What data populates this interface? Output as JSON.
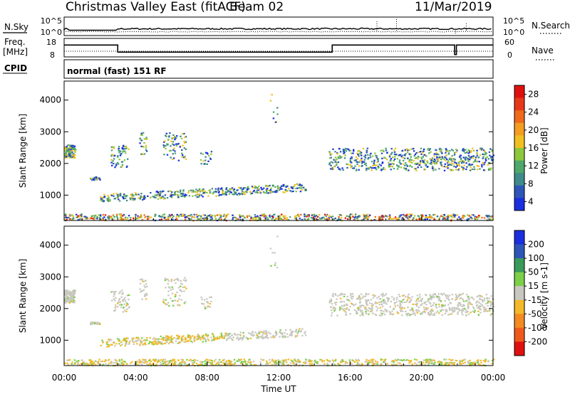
{
  "header": {
    "station": "Christmas Valley East (fitACF)",
    "beam": "Beam 02",
    "date": "11/Mar/2019"
  },
  "panels": {
    "nsky_label": "N.Sky",
    "nsearch_label": "N.Search",
    "freq_label_1": "Freq.",
    "freq_label_2": "[MHz]",
    "nave_label": "Nave",
    "cpid_label": "CPID",
    "cpid_text": "normal (fast) 151 RF"
  },
  "chart_data": [
    {
      "type": "line",
      "name": "noise",
      "left_ticks": [
        "10^5",
        "10^0"
      ],
      "right_ticks": [
        "10^5",
        "10^0"
      ]
    },
    {
      "type": "line",
      "name": "frequency-nave",
      "left_ticks": [
        "18",
        "8"
      ],
      "right_ticks": [
        "60",
        "0"
      ],
      "freq_steps": [
        [
          0,
          16
        ],
        [
          3,
          10
        ],
        [
          15,
          16
        ],
        [
          21.85,
          8
        ],
        [
          21.95,
          16
        ],
        [
          24,
          16
        ]
      ]
    },
    {
      "type": "heatmap",
      "name": "power",
      "ylabel": "Slant Range [km]",
      "ylim": [
        200,
        4600
      ],
      "yticks": [
        "1000",
        "2000",
        "3000",
        "4000"
      ],
      "colorbar_label": "Power [dB]",
      "colorbar_ticks": [
        "4",
        "8",
        "12",
        "16",
        "20",
        "24",
        "28"
      ],
      "colors": [
        "#1a2fe0",
        "#2e56b8",
        "#3f8a8a",
        "#4fa86b",
        "#8cc83e",
        "#f0c020",
        "#f59d20",
        "#ef6a1a",
        "#e8381a",
        "#e01010"
      ]
    },
    {
      "type": "heatmap",
      "name": "velocity",
      "ylabel": "Slant Range [km]",
      "ylim": [
        200,
        4600
      ],
      "yticks": [
        "1000",
        "2000",
        "3000",
        "4000"
      ],
      "colorbar_label": "Velocity [m s-1]",
      "colorbar_ticks": [
        "200",
        "100",
        "50",
        "15",
        "-15",
        "-50",
        "-100",
        "-200"
      ],
      "colors": [
        "#1a2fe0",
        "#2e56b8",
        "#3a9a5a",
        "#7cd048",
        "#c8c8c0",
        "#f3b92a",
        "#f48a22",
        "#ef5a1c",
        "#e01010"
      ]
    }
  ],
  "x_axis": {
    "ticks": [
      "00:00",
      "04:00",
      "08:00",
      "12:00",
      "16:00",
      "20:00",
      "00:00"
    ],
    "label": "Time UT"
  }
}
